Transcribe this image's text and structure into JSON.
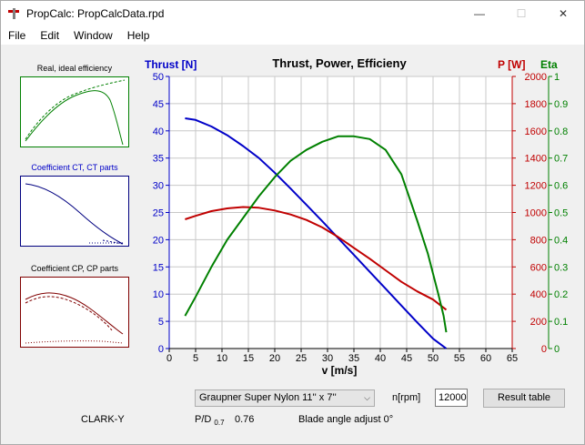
{
  "window": {
    "title": "PropCalc: PropCalcData.rpd",
    "minimize_label": "—",
    "maximize_label": "☐",
    "close_label": "✕"
  },
  "menu": {
    "items": [
      "File",
      "Edit",
      "Window",
      "Help"
    ]
  },
  "thumbnails": [
    {
      "title": "Real, ideal efficiency",
      "title_color": "#000000",
      "border_color": "#008000"
    },
    {
      "title": "Coefficient CT, CT parts",
      "title_color": "#0000c8",
      "border_color": "#000080"
    },
    {
      "title": "Coefficient CP, CP parts",
      "title_color": "#000000",
      "border_color": "#800000"
    }
  ],
  "chart_data": {
    "type": "line",
    "title": "Thrust, Power, Efficieny",
    "xlabel": "v [m/s]",
    "xlim": [
      0,
      65
    ],
    "x_ticks": [
      0,
      5,
      10,
      15,
      20,
      25,
      30,
      35,
      40,
      45,
      50,
      55,
      60,
      65
    ],
    "grid": true,
    "axes": {
      "thrust": {
        "label": "Thrust [N]",
        "color": "#0000c8",
        "lim": [
          0,
          50
        ],
        "ticks": [
          0,
          5,
          10,
          15,
          20,
          25,
          30,
          35,
          40,
          45,
          50
        ],
        "side": "left"
      },
      "power": {
        "label": "P [W]",
        "color": "#c00000",
        "lim": [
          0,
          2000
        ],
        "ticks": [
          0,
          200,
          400,
          600,
          800,
          1000,
          1200,
          1400,
          1600,
          1800,
          2000
        ],
        "side": "right"
      },
      "eta": {
        "label": "Eta",
        "color": "#008000",
        "lim": [
          0,
          1
        ],
        "ticks": [
          "0",
          "0.1",
          "0.2",
          "0.3",
          "0.4",
          "0.5",
          "0.6",
          "0.7",
          "0.8",
          "0.9",
          "1"
        ],
        "side": "right"
      }
    },
    "series": [
      {
        "axis": "thrust",
        "color": "#0000c8",
        "x": [
          3,
          5,
          8,
          11,
          14,
          17,
          20,
          23,
          26,
          29,
          32,
          35,
          38,
          41,
          44,
          47,
          50,
          52.5
        ],
        "y": [
          42.3,
          42.0,
          40.8,
          39.2,
          37.2,
          35.0,
          32.3,
          29.4,
          26.4,
          23.4,
          20.3,
          17.2,
          14.1,
          11.0,
          7.9,
          4.8,
          1.8,
          0
        ]
      },
      {
        "axis": "power",
        "color": "#c00000",
        "x": [
          3,
          5,
          8,
          11,
          14,
          17,
          20,
          23,
          26,
          29,
          32,
          35,
          38,
          41,
          44,
          47,
          50,
          52.5
        ],
        "y": [
          950,
          975,
          1010,
          1030,
          1040,
          1035,
          1015,
          985,
          945,
          890,
          820,
          740,
          660,
          575,
          490,
          420,
          360,
          285
        ]
      },
      {
        "axis": "eta",
        "color": "#008000",
        "x": [
          3,
          5,
          8,
          11,
          14,
          17,
          20,
          23,
          26,
          29,
          32,
          35,
          38,
          41,
          44,
          47,
          49,
          51,
          52,
          52.5
        ],
        "y": [
          0.12,
          0.19,
          0.3,
          0.4,
          0.48,
          0.56,
          0.63,
          0.69,
          0.73,
          0.76,
          0.78,
          0.78,
          0.77,
          0.73,
          0.64,
          0.47,
          0.35,
          0.2,
          0.12,
          0.06
        ]
      }
    ]
  },
  "controls": {
    "propeller": "Graupner Super Nylon 11'' x 7''",
    "rpm_label": "n[rpm]",
    "rpm_value": "12000",
    "result_button": "Result table",
    "airfoil": "CLARK-Y",
    "pd_label": "P/D",
    "pd_sub": "0.7",
    "pd_value": "0.76",
    "blade_angle": "Blade angle adjust 0°"
  }
}
